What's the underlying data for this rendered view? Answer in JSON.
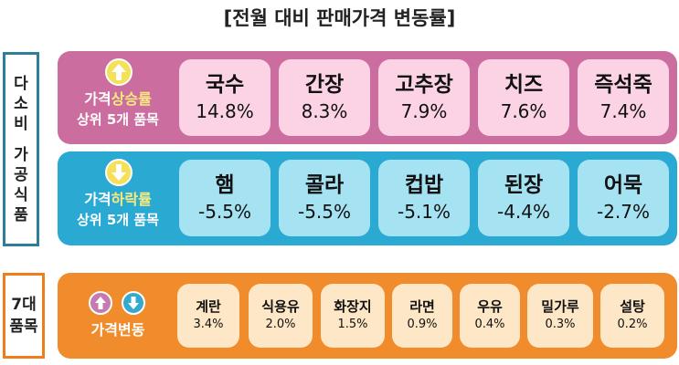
{
  "title": "[전월 대비 판매가격 변동률]",
  "side": {
    "processed_food": [
      "다",
      "소",
      "비",
      "가",
      "공",
      "식",
      "품"
    ],
    "seven_items": [
      "7대",
      "품목"
    ]
  },
  "rising": {
    "label_prefix": "가격",
    "label_highlight": "상승률",
    "label_sub": "상위 5개 품목",
    "items": [
      {
        "name": "국수",
        "value": "14.8%"
      },
      {
        "name": "간장",
        "value": "8.3%"
      },
      {
        "name": "고추장",
        "value": "7.9%"
      },
      {
        "name": "치즈",
        "value": "7.6%"
      },
      {
        "name": "즉석죽",
        "value": "7.4%"
      }
    ]
  },
  "falling": {
    "label_prefix": "가격",
    "label_highlight": "하락률",
    "label_sub": "상위 5개 품목",
    "items": [
      {
        "name": "햄",
        "value": "-5.5%"
      },
      {
        "name": "콜라",
        "value": "-5.5%"
      },
      {
        "name": "컵밥",
        "value": "-5.1%"
      },
      {
        "name": "된장",
        "value": "-4.4%"
      },
      {
        "name": "어묵",
        "value": "-2.7%"
      }
    ]
  },
  "seven": {
    "label": "가격변동",
    "items": [
      {
        "name": "계란",
        "value": "3.4%"
      },
      {
        "name": "식용유",
        "value": "2.0%"
      },
      {
        "name": "화장지",
        "value": "1.5%"
      },
      {
        "name": "라면",
        "value": "0.9%"
      },
      {
        "name": "우유",
        "value": "0.4%"
      },
      {
        "name": "밀가루",
        "value": "0.3%"
      },
      {
        "name": "설탕",
        "value": "0.2%"
      }
    ]
  },
  "icons": {
    "up": "arrow-up-icon",
    "down": "arrow-down-icon"
  },
  "colors": {
    "rising_band": "#cb6d9e",
    "rising_card": "#fbd3e5",
    "falling_band": "#2aa9d3",
    "falling_card": "#a5e2f2",
    "seven_band": "#f08c2b",
    "seven_card": "#fde7c6",
    "highlight": "#f8ea7d"
  }
}
